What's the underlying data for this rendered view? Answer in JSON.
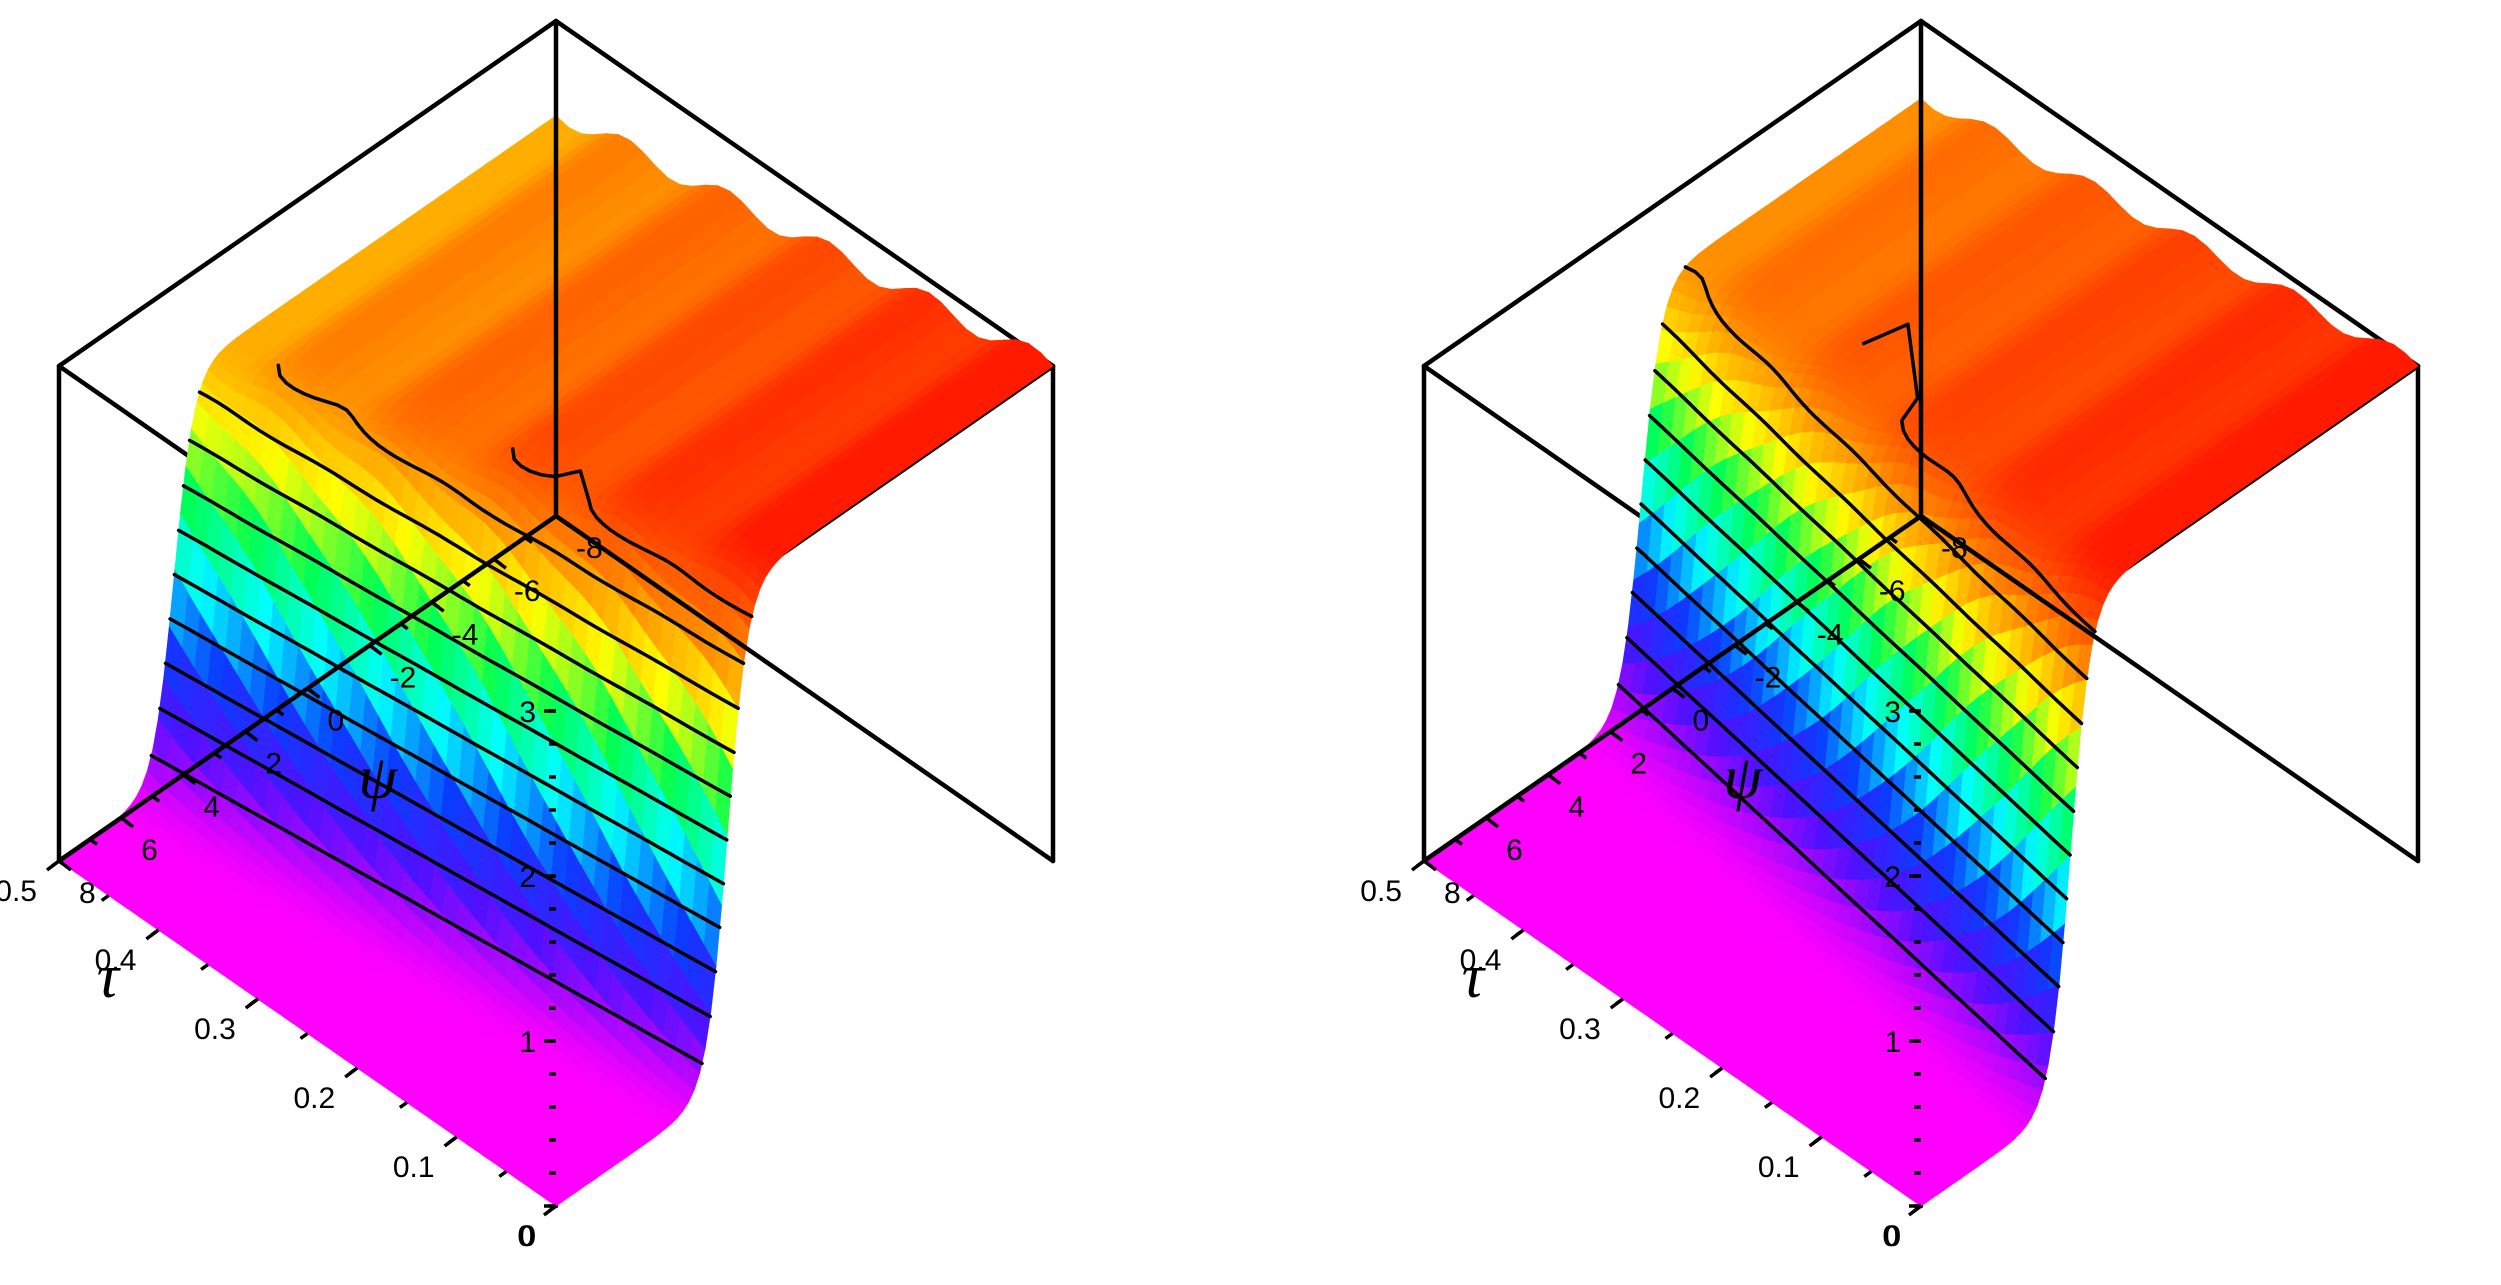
{
  "chart_data": [
    {
      "type": "surface3d",
      "title": "",
      "xlabel": "τ",
      "ylabel": "ψ",
      "zlabel": "",
      "x_ticks": [
        "0",
        "0.1",
        "0.2",
        "0.3",
        "0.4",
        "0.5"
      ],
      "y_ticks": [
        "-8",
        "-6",
        "-4",
        "-2",
        "0",
        "2",
        "4",
        "6",
        "8"
      ],
      "z_ticks": [
        "0",
        "1",
        "2",
        "3"
      ],
      "xlim": [
        0,
        0.5
      ],
      "ylim": [
        -8,
        8
      ],
      "zlim": [
        0,
        3
      ],
      "surface": {
        "shape": "kink front along psi, flat plateau on negative psi side",
        "front_center_psi_at_tau_0": 2.5,
        "front_center_psi_at_tau_0_5": 4.3,
        "plateau_height_near_tau_0": 3.0,
        "plateau_height_near_tau_0_5": 2.45,
        "ripple_amplitude": 0.06
      },
      "contour_levels": [
        0.25,
        0.5,
        0.75,
        1.0,
        1.25,
        1.5,
        1.75,
        2.0,
        2.25,
        2.5,
        2.75
      ],
      "colormap": [
        "#ff00ff",
        "#5010ff",
        "#0a3cff",
        "#00ffff",
        "#00ff50",
        "#ffff00",
        "#ff8000",
        "#ff1a00"
      ]
    },
    {
      "type": "surface3d",
      "title": "",
      "xlabel": "τ",
      "ylabel": "ψ",
      "zlabel": "",
      "x_ticks": [
        "0",
        "0.1",
        "0.2",
        "0.3",
        "0.4",
        "0.5"
      ],
      "y_ticks": [
        "-8",
        "-6",
        "-4",
        "-2",
        "0",
        "2",
        "4",
        "6",
        "8"
      ],
      "z_ticks": [
        "0",
        "1",
        "2",
        "3"
      ],
      "xlim": [
        0,
        0.5
      ],
      "ylim": [
        -8,
        8
      ],
      "zlim": [
        0,
        3
      ],
      "surface": {
        "shape": "kink front along psi, flat plateau on negative psi side",
        "front_center_psi_at_tau_0": 3.2,
        "front_center_psi_at_tau_0_5": 1.0,
        "plateau_height_near_tau_0": 3.0,
        "plateau_height_near_tau_0_5": 2.55,
        "ripple_amplitude": 0.05
      },
      "contour_levels": [
        0.25,
        0.5,
        0.75,
        1.0,
        1.25,
        1.5,
        1.75,
        2.0,
        2.25,
        2.5,
        2.75
      ],
      "colormap": [
        "#ff00ff",
        "#5010ff",
        "#0a3cff",
        "#00ffff",
        "#00ff50",
        "#ffff00",
        "#ff8000",
        "#ff1a00"
      ]
    }
  ]
}
